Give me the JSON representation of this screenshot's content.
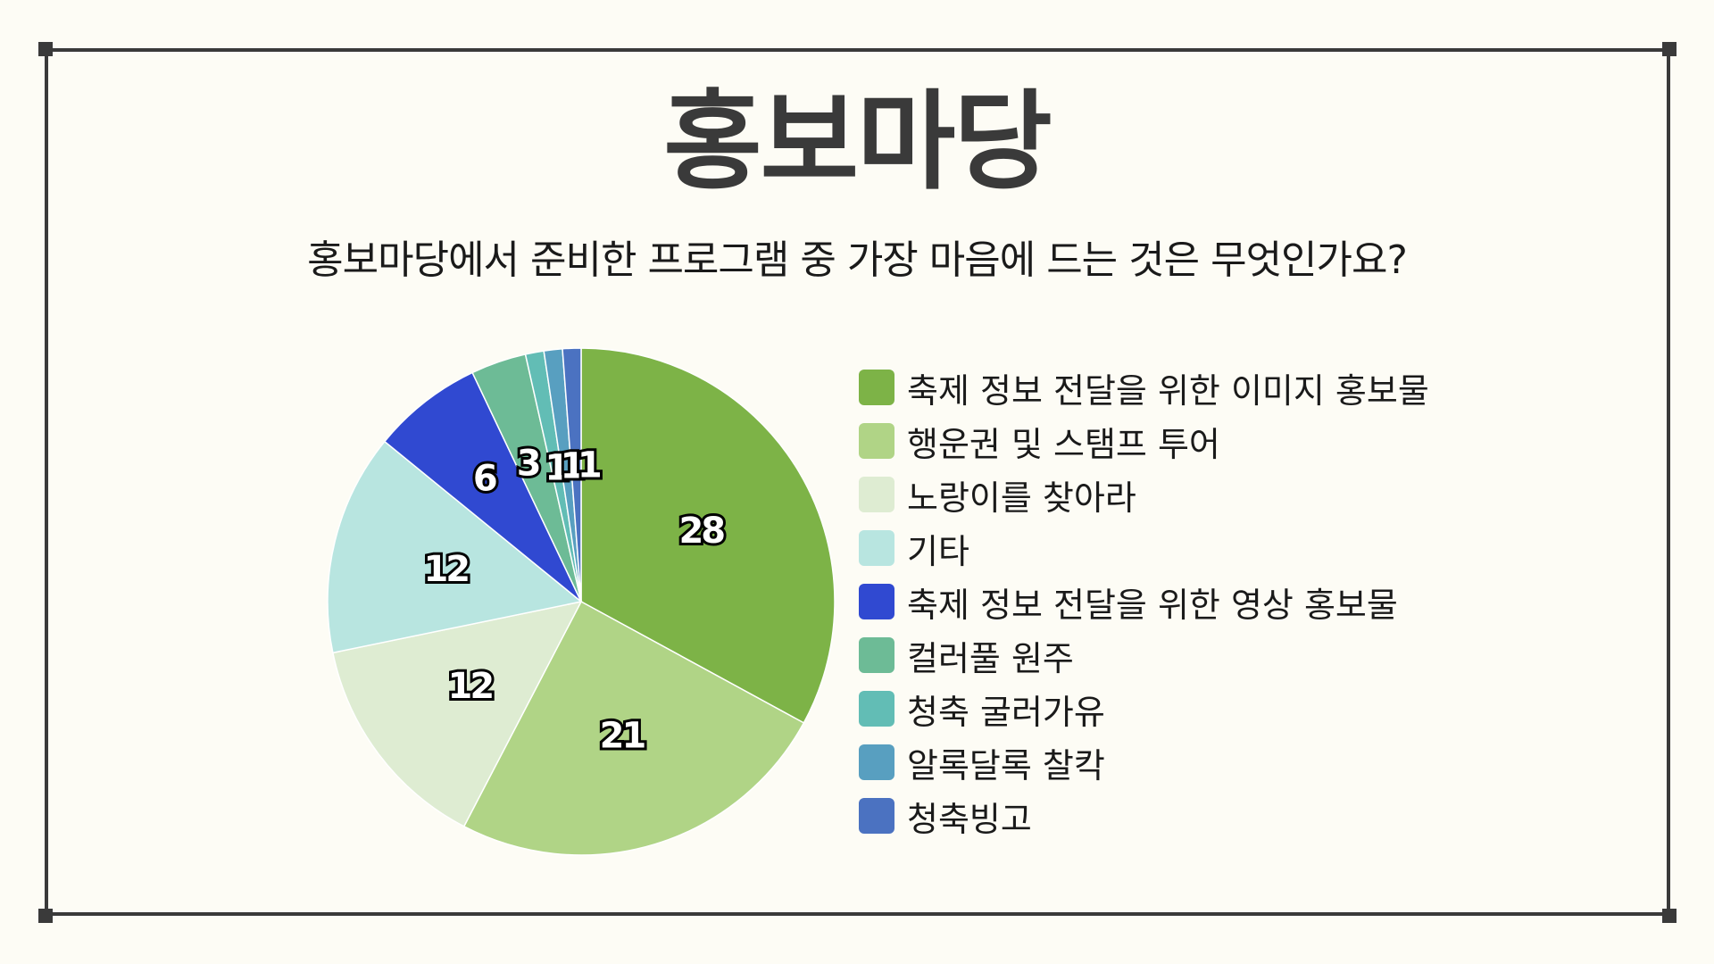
{
  "chart_data": {
    "type": "pie",
    "title": "홍보마당",
    "subtitle": "홍보마당에서 준비한 프로그램 중 가장 마음에 드는 것은 무엇인가요?",
    "legend": "right",
    "slices": [
      {
        "label": "축제 정보 전달을 위한 이미지 홍보물",
        "value": 28,
        "color": "#7db347"
      },
      {
        "label": "행운권 및 스탬프 투어",
        "value": 21,
        "color": "#b0d486"
      },
      {
        "label": "노랑이를 찾아라",
        "value": 12,
        "color": "#deecd2"
      },
      {
        "label": "기타",
        "value": 12,
        "color": "#b8e5e0"
      },
      {
        "label": "축제 정보 전달을 위한 영상 홍보물",
        "value": 6,
        "color": "#3049d1"
      },
      {
        "label": "컬러풀 원주",
        "value": 3,
        "color": "#6dbb96"
      },
      {
        "label": "청축 굴러가유",
        "value": 1,
        "color": "#62bdb5"
      },
      {
        "label": "알록달록 찰칵",
        "value": 1,
        "color": "#589fc0"
      },
      {
        "label": "청축빙고",
        "value": 1,
        "color": "#4b72c1"
      }
    ]
  }
}
